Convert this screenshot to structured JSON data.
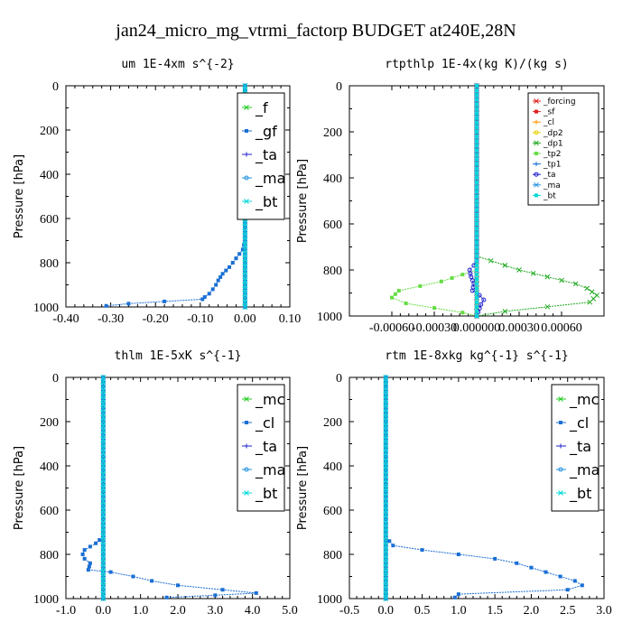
{
  "title": "jan24_micro_mg_vtrmi_factorp  BUDGET at240E,28N",
  "chart_data": [
    {
      "type": "line",
      "title": "um   1E-4xm  s^{-2}",
      "ylabel": "Pressure [hPa]",
      "xlim": [
        -0.4,
        0.1
      ],
      "ylim": [
        1000,
        0
      ],
      "xticks": [
        "-0.40",
        "-0.30",
        "-0.20",
        "-0.10",
        "0.00",
        "0.10"
      ],
      "yticks": [
        "0",
        "200",
        "400",
        "600",
        "800",
        "1000"
      ],
      "legend_position": "top-right",
      "legend_size": "large",
      "series": [
        {
          "name": "_f",
          "color": "#22cc22",
          "x": [
            0,
            0,
            0,
            0,
            0,
            0,
            0,
            0,
            0,
            0,
            0
          ],
          "y": [
            0,
            100,
            200,
            300,
            400,
            500,
            600,
            700,
            800,
            900,
            1000
          ]
        },
        {
          "name": "_gf",
          "color": "#1a6fd4",
          "x": [
            0,
            0,
            -0.005,
            -0.02,
            -0.035,
            -0.05,
            -0.06,
            -0.065,
            -0.072,
            -0.08,
            -0.09,
            -0.095,
            -0.18,
            -0.26,
            -0.31
          ],
          "y": [
            0,
            700,
            740,
            780,
            820,
            850,
            880,
            900,
            920,
            940,
            955,
            965,
            975,
            985,
            995
          ]
        },
        {
          "name": "_ta",
          "color": "#2020cc",
          "x": [
            0,
            0
          ],
          "y": [
            0,
            1000
          ]
        },
        {
          "name": "_ma",
          "color": "#2090e0",
          "x": [
            0,
            0
          ],
          "y": [
            0,
            1000
          ]
        },
        {
          "name": "_bt",
          "color": "#00d8d8",
          "x": [
            0,
            0,
            0,
            0,
            0,
            0,
            0,
            0,
            0,
            0,
            0
          ],
          "y": [
            0,
            100,
            200,
            300,
            400,
            500,
            600,
            700,
            800,
            900,
            1000
          ]
        }
      ]
    },
    {
      "type": "line",
      "title": "rtpthlp   1E-4x(kg K)/(kg s)",
      "ylabel": "Pressure [hPa]",
      "xlim": [
        -0.0009,
        0.0009
      ],
      "ylim": [
        1000,
        0
      ],
      "xticks": [
        "-0.00060",
        "-0.00030",
        "0.000000",
        "0.00030",
        "0.00060"
      ],
      "yticks": [
        "0",
        "200",
        "400",
        "600",
        "800",
        "1000"
      ],
      "legend_position": "top-right",
      "legend_size": "small",
      "series": [
        {
          "name": "_forcing",
          "color": "#e02020",
          "x": [
            0,
            0,
            0,
            0,
            0,
            0,
            0,
            0,
            0,
            0,
            0
          ],
          "y": [
            0,
            100,
            200,
            300,
            400,
            500,
            600,
            700,
            800,
            900,
            1000
          ]
        },
        {
          "name": "_sf",
          "color": "#e02020",
          "x": [
            0,
            0
          ],
          "y": [
            0,
            1000
          ]
        },
        {
          "name": "_cl",
          "color": "#ff9900",
          "x": [
            0,
            0
          ],
          "y": [
            0,
            1000
          ]
        },
        {
          "name": "_dp2",
          "color": "#e8d000",
          "x": [
            0,
            0
          ],
          "y": [
            0,
            1000
          ]
        },
        {
          "name": "_dp1",
          "color": "#22aa22",
          "x": [
            0,
            0,
            0.0001,
            0.0003,
            0.0005,
            0.0007,
            0.00078,
            0.00085,
            0.0008,
            0.0005,
            0.0002,
            0
          ],
          "y": [
            0,
            740,
            760,
            800,
            830,
            860,
            880,
            910,
            940,
            960,
            980,
            1000
          ]
        },
        {
          "name": "_tp2",
          "color": "#66dd44",
          "x": [
            0,
            0,
            -0.0001,
            -0.00025,
            -0.0004,
            -0.00055,
            -0.0006,
            -0.0005,
            -0.0003,
            -0.0001,
            0
          ],
          "y": [
            0,
            800,
            820,
            850,
            870,
            890,
            920,
            945,
            965,
            985,
            1000
          ]
        },
        {
          "name": "_tp1",
          "color": "#1a6fd4",
          "x": [
            0,
            0
          ],
          "y": [
            0,
            1000
          ]
        },
        {
          "name": "_ta",
          "color": "#2020cc",
          "x": [
            0,
            0,
            -2e-05,
            -5e-05,
            -4e-05,
            -2e-05,
            -3e-05,
            2e-05,
            5e-05,
            3e-05,
            0
          ],
          "y": [
            0,
            760,
            780,
            800,
            830,
            860,
            890,
            910,
            930,
            950,
            1000
          ]
        },
        {
          "name": "_ma",
          "color": "#2090e0",
          "x": [
            0,
            0
          ],
          "y": [
            0,
            1000
          ]
        },
        {
          "name": "_bt",
          "color": "#00d8d8",
          "x": [
            0,
            0
          ],
          "y": [
            0,
            1000
          ]
        }
      ]
    },
    {
      "type": "line",
      "title": "thlm   1E-5xK  s^{-1}",
      "ylabel": "Pressure [hPa]",
      "xlim": [
        -1.0,
        5.0
      ],
      "ylim": [
        1000,
        0
      ],
      "xticks": [
        "-1.0",
        "0.0",
        "1.0",
        "2.0",
        "3.0",
        "4.0",
        "5.0"
      ],
      "yticks": [
        "0",
        "200",
        "400",
        "600",
        "800",
        "1000"
      ],
      "legend_position": "top-right",
      "legend_size": "large",
      "series": [
        {
          "name": "_mc",
          "color": "#22cc22",
          "x": [
            0,
            0,
            0,
            0,
            0,
            0,
            0,
            0,
            0,
            0,
            0
          ],
          "y": [
            0,
            100,
            200,
            300,
            400,
            500,
            600,
            700,
            800,
            900,
            1000
          ]
        },
        {
          "name": "_cl",
          "color": "#1a6fd4",
          "x": [
            0,
            0,
            -0.2,
            -0.5,
            -0.55,
            -0.5,
            -0.35,
            -0.4,
            0.2,
            0.8,
            1.3,
            2.0,
            3.2,
            4.1,
            3.0,
            1.7
          ],
          "y": [
            0,
            720,
            750,
            780,
            800,
            820,
            840,
            870,
            880,
            900,
            920,
            940,
            960,
            975,
            985,
            995
          ]
        },
        {
          "name": "_ta",
          "color": "#2020cc",
          "x": [
            0,
            0
          ],
          "y": [
            0,
            1000
          ]
        },
        {
          "name": "_ma",
          "color": "#2090e0",
          "x": [
            0,
            0
          ],
          "y": [
            0,
            1000
          ]
        },
        {
          "name": "_bt",
          "color": "#00d8d8",
          "x": [
            0,
            0,
            0,
            0,
            0,
            0,
            0,
            0,
            0,
            0,
            0
          ],
          "y": [
            0,
            100,
            200,
            300,
            400,
            500,
            600,
            700,
            800,
            900,
            1000
          ]
        }
      ]
    },
    {
      "type": "line",
      "title": "rtm   1E-8xkg  kg^{-1} s^{-1}",
      "ylabel": "Pressure [hPa]",
      "xlim": [
        -0.5,
        3.0
      ],
      "ylim": [
        1000,
        0
      ],
      "xticks": [
        "-0.5",
        "0.0",
        "0.5",
        "1.0",
        "1.5",
        "2.0",
        "2.5",
        "3.0"
      ],
      "yticks": [
        "0",
        "200",
        "400",
        "600",
        "800",
        "1000"
      ],
      "legend_position": "top-right",
      "legend_size": "large",
      "series": [
        {
          "name": "_mc",
          "color": "#22cc22",
          "x": [
            0,
            0,
            0,
            0,
            0,
            0,
            0,
            0,
            0,
            0,
            0
          ],
          "y": [
            0,
            100,
            200,
            300,
            400,
            500,
            600,
            700,
            800,
            900,
            1000
          ]
        },
        {
          "name": "_cl",
          "color": "#1a6fd4",
          "x": [
            0,
            0,
            0.1,
            0.5,
            1.0,
            1.5,
            1.8,
            2.0,
            2.2,
            2.4,
            2.6,
            2.7,
            2.5,
            1.0,
            0.95
          ],
          "y": [
            0,
            720,
            760,
            780,
            800,
            820,
            840,
            860,
            880,
            900,
            920,
            940,
            960,
            980,
            995
          ]
        },
        {
          "name": "_ta",
          "color": "#2020cc",
          "x": [
            0,
            0
          ],
          "y": [
            0,
            1000
          ]
        },
        {
          "name": "_ma",
          "color": "#2090e0",
          "x": [
            0,
            0
          ],
          "y": [
            0,
            1000
          ]
        },
        {
          "name": "_bt",
          "color": "#00d8d8",
          "x": [
            0,
            0,
            0,
            0,
            0,
            0,
            0,
            0,
            0,
            0,
            0
          ],
          "y": [
            0,
            100,
            200,
            300,
            400,
            500,
            600,
            700,
            800,
            900,
            1000
          ]
        }
      ]
    }
  ]
}
